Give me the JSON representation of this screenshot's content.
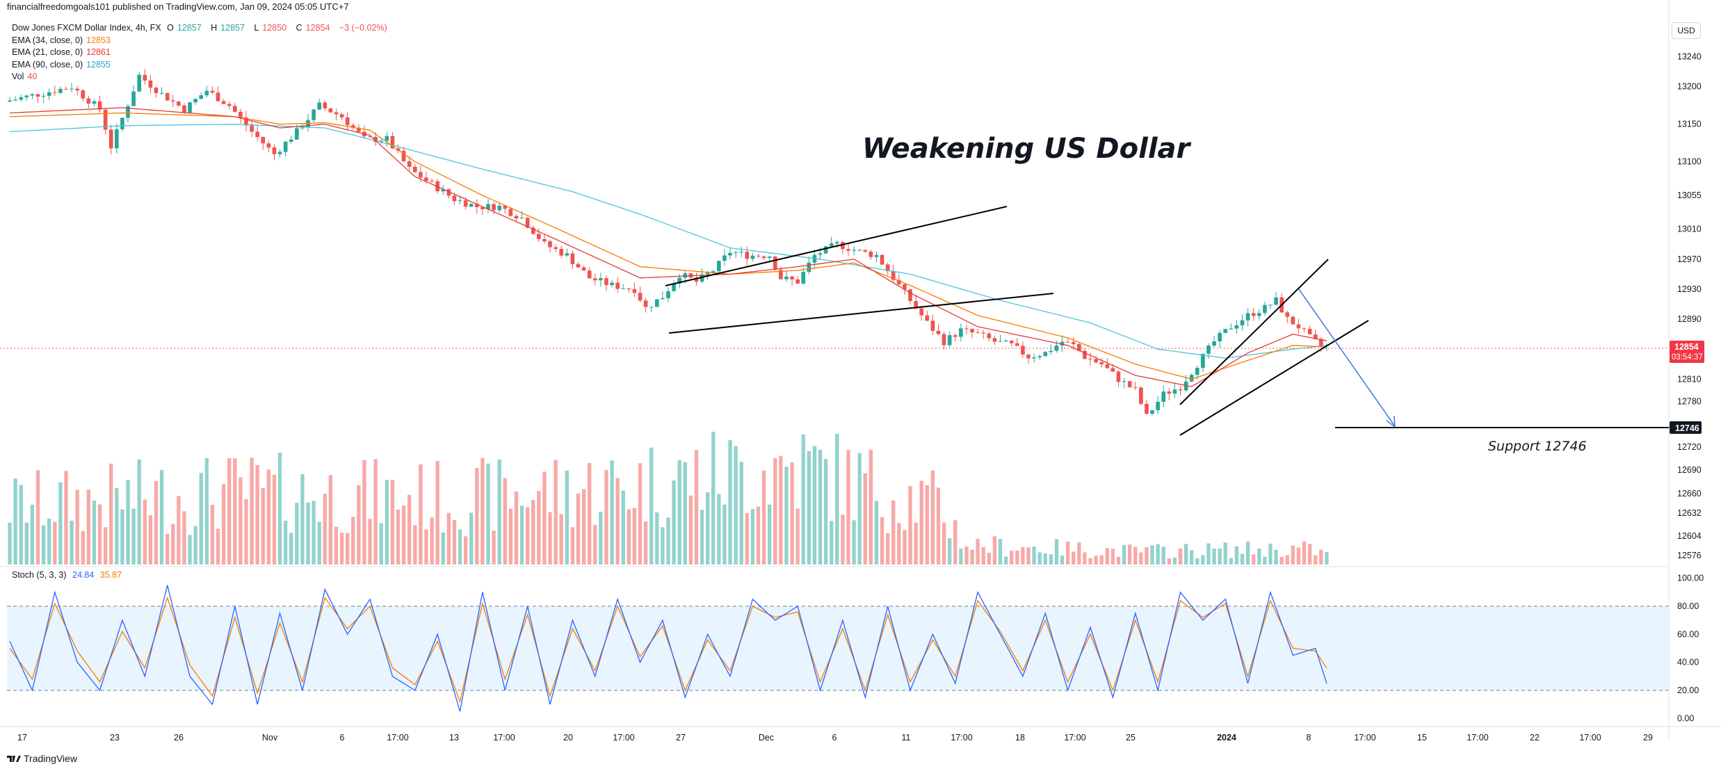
{
  "header": {
    "publisher": "financialfreedomgoals101 published on TradingView.com, Jan 09, 2024 05:05 UTC+7"
  },
  "legend": {
    "symbol": "Dow Jones FXCM Dollar Index, 4h, FX",
    "o_label": "O",
    "o_value": "12857",
    "h_label": "H",
    "h_value": "12857",
    "l_label": "L",
    "l_value": "12850",
    "c_label": "C",
    "c_value": "12854",
    "change": "−3 (−0.02%)",
    "ema34_label": "EMA (34, close, 0)",
    "ema34_value": "12853",
    "ema34_color": "#f57c00",
    "ema21_label": "EMA (21, close, 0)",
    "ema21_value": "12861",
    "ema21_color": "#e53935",
    "ema90_label": "EMA (90, close, 0)",
    "ema90_value": "12855",
    "ema90_color": "#4dc3d9",
    "vol_label": "Vol",
    "vol_value": "40"
  },
  "stoch_legend": {
    "label": "Stoch (5, 3, 3)",
    "k_value": "24.84",
    "d_value": "35.87",
    "k_color": "#2962ff",
    "d_color": "#f57c00"
  },
  "price_scale": {
    "currency": "USD",
    "ticks": [
      "13240",
      "13200",
      "13150",
      "13100",
      "13055",
      "13010",
      "12970",
      "12930",
      "12890",
      "12810",
      "12780",
      "12720",
      "12690",
      "12660",
      "12632",
      "12604",
      "12576"
    ],
    "last_price": "12854",
    "countdown": "03:54:37",
    "support_tag": "12746"
  },
  "stoch_scale": {
    "ticks": [
      "100.00",
      "80.00",
      "60.00",
      "40.00",
      "20.00",
      "0.00"
    ]
  },
  "time_axis": {
    "labels": [
      "17",
      "23",
      "26",
      "Nov",
      "6",
      "17:00",
      "13",
      "17:00",
      "20",
      "17:00",
      "27",
      "Dec",
      "6",
      "11",
      "17:00",
      "18",
      "17:00",
      "25",
      "2024",
      "8",
      "17:00",
      "15",
      "17:00",
      "22",
      "17:00",
      "29"
    ]
  },
  "annotations": {
    "title": "Weakening US Dollar",
    "support": "Support 12746"
  },
  "footer": {
    "brand": "TradingView"
  },
  "chart_data": {
    "type": "candlestick",
    "symbol": "Dow Jones FXCM Dollar Index",
    "interval": "4h",
    "ylim": [
      12560,
      13260
    ],
    "price_path": [
      [
        0,
        13180
      ],
      [
        12,
        13200
      ],
      [
        17,
        13170
      ],
      [
        19,
        13120
      ],
      [
        24,
        13215
      ],
      [
        28,
        13190
      ],
      [
        32,
        13170
      ],
      [
        36,
        13195
      ],
      [
        40,
        13175
      ],
      [
        44,
        13140
      ],
      [
        48,
        13110
      ],
      [
        52,
        13140
      ],
      [
        56,
        13175
      ],
      [
        60,
        13160
      ],
      [
        64,
        13130
      ],
      [
        68,
        13130
      ],
      [
        72,
        13090
      ],
      [
        76,
        13070
      ],
      [
        80,
        13050
      ],
      [
        84,
        13040
      ],
      [
        88,
        13040
      ],
      [
        92,
        13025
      ],
      [
        96,
        12990
      ],
      [
        100,
        12975
      ],
      [
        104,
        12945
      ],
      [
        108,
        12935
      ],
      [
        112,
        12930
      ],
      [
        114,
        12905
      ],
      [
        117,
        12920
      ],
      [
        120,
        12950
      ],
      [
        123,
        12940
      ],
      [
        126,
        12955
      ],
      [
        129,
        12980
      ],
      [
        132,
        12975
      ],
      [
        136,
        12975
      ],
      [
        138,
        12945
      ],
      [
        141,
        12940
      ],
      [
        144,
        12975
      ],
      [
        148,
        12990
      ],
      [
        152,
        12980
      ],
      [
        155,
        12975
      ],
      [
        158,
        12945
      ],
      [
        161,
        12915
      ],
      [
        164,
        12885
      ],
      [
        167,
        12860
      ],
      [
        170,
        12875
      ],
      [
        173,
        12870
      ],
      [
        176,
        12860
      ],
      [
        179,
        12855
      ],
      [
        182,
        12840
      ],
      [
        185,
        12845
      ],
      [
        188,
        12860
      ],
      [
        190,
        12855
      ],
      [
        192,
        12840
      ],
      [
        195,
        12830
      ],
      [
        198,
        12810
      ],
      [
        201,
        12795
      ],
      [
        203,
        12760
      ],
      [
        206,
        12790
      ],
      [
        209,
        12800
      ],
      [
        212,
        12830
      ],
      [
        215,
        12860
      ],
      [
        218,
        12880
      ],
      [
        221,
        12895
      ],
      [
        224,
        12905
      ],
      [
        226,
        12915
      ],
      [
        228,
        12890
      ],
      [
        230,
        12880
      ],
      [
        232,
        12865
      ],
      [
        234,
        12854
      ]
    ],
    "ema21_path": [
      [
        0,
        13165
      ],
      [
        20,
        13172
      ],
      [
        40,
        13160
      ],
      [
        48,
        13145
      ],
      [
        56,
        13150
      ],
      [
        64,
        13135
      ],
      [
        72,
        13080
      ],
      [
        84,
        13040
      ],
      [
        96,
        13000
      ],
      [
        112,
        12945
      ],
      [
        128,
        12950
      ],
      [
        140,
        12960
      ],
      [
        150,
        12970
      ],
      [
        160,
        12925
      ],
      [
        172,
        12880
      ],
      [
        188,
        12855
      ],
      [
        200,
        12815
      ],
      [
        210,
        12800
      ],
      [
        220,
        12845
      ],
      [
        228,
        12870
      ],
      [
        234,
        12861
      ]
    ],
    "ema34_path": [
      [
        0,
        13160
      ],
      [
        20,
        13165
      ],
      [
        40,
        13160
      ],
      [
        48,
        13150
      ],
      [
        56,
        13152
      ],
      [
        64,
        13142
      ],
      [
        72,
        13100
      ],
      [
        84,
        13055
      ],
      [
        96,
        13015
      ],
      [
        112,
        12960
      ],
      [
        128,
        12950
      ],
      [
        140,
        12955
      ],
      [
        150,
        12965
      ],
      [
        160,
        12935
      ],
      [
        172,
        12895
      ],
      [
        188,
        12865
      ],
      [
        200,
        12830
      ],
      [
        210,
        12810
      ],
      [
        220,
        12835
      ],
      [
        228,
        12855
      ],
      [
        234,
        12853
      ]
    ],
    "ema90_path": [
      [
        0,
        13140
      ],
      [
        20,
        13148
      ],
      [
        40,
        13150
      ],
      [
        56,
        13145
      ],
      [
        64,
        13130
      ],
      [
        84,
        13090
      ],
      [
        100,
        13060
      ],
      [
        112,
        13030
      ],
      [
        128,
        12985
      ],
      [
        144,
        12970
      ],
      [
        160,
        12950
      ],
      [
        176,
        12915
      ],
      [
        192,
        12885
      ],
      [
        204,
        12850
      ],
      [
        216,
        12838
      ],
      [
        228,
        12850
      ],
      [
        234,
        12855
      ]
    ],
    "stoch_k_path": [
      [
        0,
        55
      ],
      [
        4,
        20
      ],
      [
        8,
        90
      ],
      [
        12,
        40
      ],
      [
        16,
        20
      ],
      [
        20,
        70
      ],
      [
        24,
        30
      ],
      [
        28,
        95
      ],
      [
        32,
        30
      ],
      [
        36,
        10
      ],
      [
        40,
        80
      ],
      [
        44,
        10
      ],
      [
        48,
        75
      ],
      [
        52,
        20
      ],
      [
        56,
        92
      ],
      [
        60,
        60
      ],
      [
        64,
        85
      ],
      [
        68,
        30
      ],
      [
        72,
        20
      ],
      [
        76,
        60
      ],
      [
        80,
        5
      ],
      [
        84,
        90
      ],
      [
        88,
        20
      ],
      [
        92,
        80
      ],
      [
        96,
        10
      ],
      [
        100,
        70
      ],
      [
        104,
        30
      ],
      [
        108,
        85
      ],
      [
        112,
        40
      ],
      [
        116,
        70
      ],
      [
        120,
        15
      ],
      [
        124,
        60
      ],
      [
        128,
        30
      ],
      [
        132,
        85
      ],
      [
        136,
        70
      ],
      [
        140,
        80
      ],
      [
        144,
        20
      ],
      [
        148,
        70
      ],
      [
        152,
        15
      ],
      [
        156,
        80
      ],
      [
        160,
        20
      ],
      [
        164,
        60
      ],
      [
        168,
        25
      ],
      [
        172,
        90
      ],
      [
        176,
        60
      ],
      [
        180,
        30
      ],
      [
        184,
        75
      ],
      [
        188,
        20
      ],
      [
        192,
        65
      ],
      [
        196,
        15
      ],
      [
        200,
        75
      ],
      [
        204,
        20
      ],
      [
        208,
        90
      ],
      [
        212,
        70
      ],
      [
        216,
        85
      ],
      [
        220,
        25
      ],
      [
        224,
        90
      ],
      [
        228,
        45
      ],
      [
        232,
        50
      ],
      [
        234,
        24.84
      ]
    ],
    "stoch_d_path": [
      [
        0,
        50
      ],
      [
        4,
        28
      ],
      [
        8,
        82
      ],
      [
        12,
        48
      ],
      [
        16,
        26
      ],
      [
        20,
        62
      ],
      [
        24,
        36
      ],
      [
        28,
        86
      ],
      [
        32,
        38
      ],
      [
        36,
        16
      ],
      [
        40,
        72
      ],
      [
        44,
        18
      ],
      [
        48,
        68
      ],
      [
        52,
        26
      ],
      [
        56,
        86
      ],
      [
        60,
        64
      ],
      [
        64,
        80
      ],
      [
        68,
        36
      ],
      [
        72,
        24
      ],
      [
        76,
        55
      ],
      [
        80,
        12
      ],
      [
        84,
        82
      ],
      [
        88,
        28
      ],
      [
        92,
        74
      ],
      [
        96,
        16
      ],
      [
        100,
        64
      ],
      [
        104,
        34
      ],
      [
        108,
        80
      ],
      [
        112,
        44
      ],
      [
        116,
        66
      ],
      [
        120,
        20
      ],
      [
        124,
        56
      ],
      [
        128,
        34
      ],
      [
        132,
        80
      ],
      [
        136,
        72
      ],
      [
        140,
        76
      ],
      [
        144,
        26
      ],
      [
        148,
        64
      ],
      [
        152,
        20
      ],
      [
        156,
        74
      ],
      [
        160,
        26
      ],
      [
        164,
        56
      ],
      [
        168,
        30
      ],
      [
        172,
        84
      ],
      [
        176,
        62
      ],
      [
        180,
        34
      ],
      [
        184,
        70
      ],
      [
        188,
        26
      ],
      [
        192,
        60
      ],
      [
        196,
        20
      ],
      [
        200,
        70
      ],
      [
        204,
        26
      ],
      [
        208,
        84
      ],
      [
        212,
        72
      ],
      [
        216,
        82
      ],
      [
        220,
        30
      ],
      [
        224,
        84
      ],
      [
        228,
        50
      ],
      [
        232,
        48
      ],
      [
        234,
        35.87
      ]
    ],
    "volume_profile": [
      [
        0,
        0.45
      ],
      [
        40,
        0.55
      ],
      [
        80,
        0.5
      ],
      [
        110,
        0.6
      ],
      [
        140,
        0.75
      ],
      [
        165,
        0.45
      ],
      [
        170,
        0.15
      ],
      [
        200,
        0.1
      ],
      [
        230,
        0.12
      ],
      [
        234,
        0.08
      ]
    ],
    "vol_ylim": [
      0,
      1
    ],
    "stoch_ylim": [
      0,
      100
    ],
    "stoch_bands": [
      20,
      80
    ],
    "n_bars": 235
  }
}
